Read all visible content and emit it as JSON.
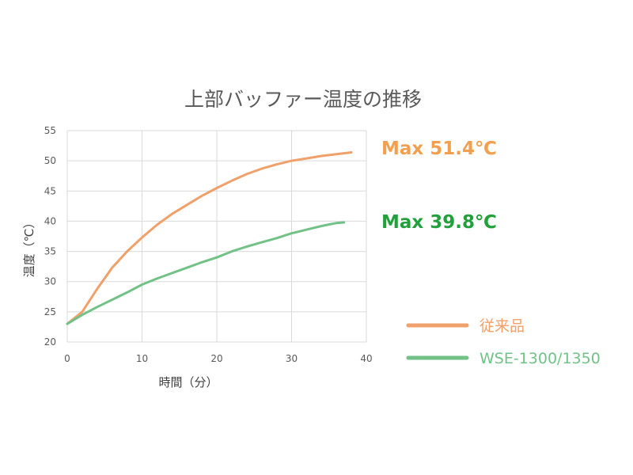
{
  "chart_data": {
    "type": "line",
    "title": "上部バッファー温度の推移",
    "xlabel": "時間（分）",
    "ylabel": "温度（℃）",
    "xlim": [
      0,
      40
    ],
    "ylim": [
      20,
      55
    ],
    "xticks": [
      0,
      10,
      20,
      30,
      40
    ],
    "yticks": [
      20,
      25,
      30,
      35,
      40,
      45,
      50,
      55
    ],
    "grid": true,
    "legend_position": "right",
    "series": [
      {
        "name": "従来品",
        "color": "#F0A06A",
        "x": [
          0,
          2,
          4,
          6,
          8,
          10,
          12,
          14,
          16,
          18,
          20,
          22,
          24,
          26,
          28,
          30,
          32,
          34,
          36,
          38
        ],
        "y": [
          23.0,
          25.0,
          28.8,
          32.3,
          35.0,
          37.3,
          39.4,
          41.2,
          42.7,
          44.2,
          45.5,
          46.7,
          47.8,
          48.7,
          49.4,
          50.0,
          50.4,
          50.8,
          51.1,
          51.4
        ]
      },
      {
        "name": "WSE-1300/1350",
        "color": "#72C288",
        "x": [
          0,
          2,
          4,
          6,
          8,
          10,
          12,
          14,
          16,
          18,
          20,
          22,
          24,
          26,
          28,
          30,
          32,
          34,
          36,
          37
        ],
        "y": [
          23.0,
          24.5,
          25.8,
          27.0,
          28.2,
          29.5,
          30.5,
          31.4,
          32.3,
          33.2,
          34.0,
          35.0,
          35.8,
          36.5,
          37.2,
          38.0,
          38.6,
          39.2,
          39.7,
          39.8
        ]
      }
    ],
    "annotations": [
      {
        "text": "Max 51.4℃",
        "color": "#F0A050"
      },
      {
        "text": "Max 39.8℃",
        "color": "#22A03C"
      }
    ]
  }
}
